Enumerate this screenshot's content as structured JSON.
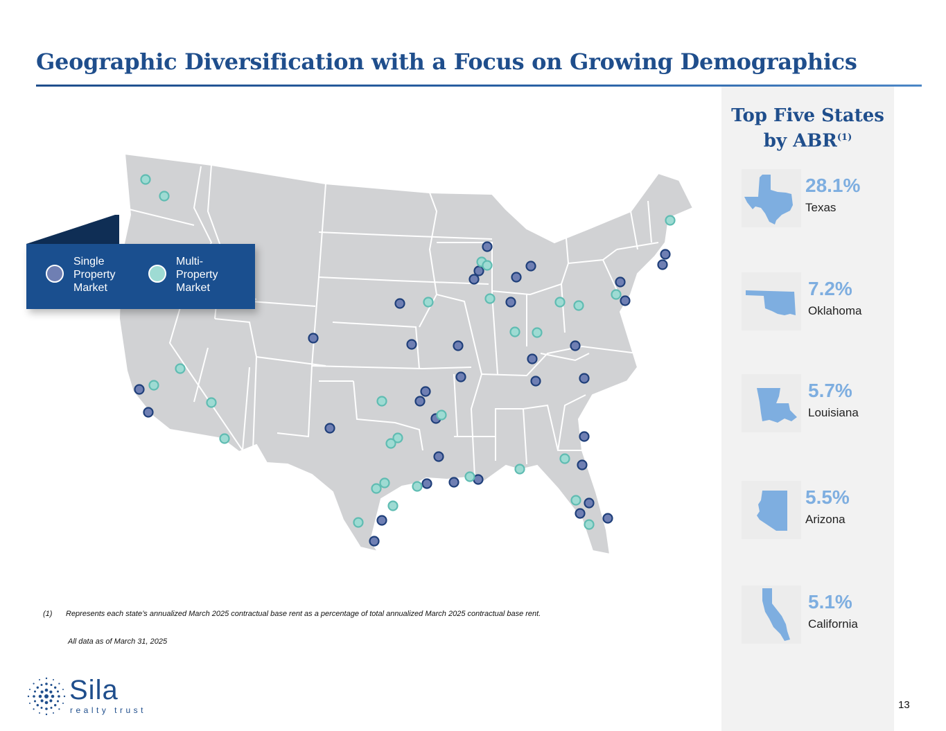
{
  "title": "Geographic Diversification with a Focus on Growing Demographics",
  "colors": {
    "brand_blue": "#1f4e8c",
    "single_marker": "#6f7fb3",
    "multi_marker": "#9edbd3",
    "map_fill": "#d1d2d4",
    "state_accent": "#7eaee0"
  },
  "legend": {
    "single": "Single Property Market",
    "multi": "Multi-Property Market"
  },
  "top_states": {
    "title": "Top Five States by ABR",
    "title_line1": "Top Five States",
    "title_line2": "by ABR",
    "note_ref": "(1)",
    "items": [
      {
        "percent": "28.1%",
        "state": "Texas",
        "icon": "texas-shape"
      },
      {
        "percent": "7.2%",
        "state": "Oklahoma",
        "icon": "oklahoma-shape"
      },
      {
        "percent": "5.7%",
        "state": "Louisiana",
        "icon": "louisiana-shape"
      },
      {
        "percent": "5.5%",
        "state": "Arizona",
        "icon": "arizona-shape"
      },
      {
        "percent": "5.1%",
        "state": "California",
        "icon": "california-shape"
      }
    ]
  },
  "footnote": {
    "number": "(1)",
    "text": "Represents each state’s annualized March 2025 contractual base rent as a percentage of total annualized March 2025 contractual base rent."
  },
  "as_of": "All data as of March 31, 2025",
  "logo": {
    "name": "Sila",
    "tagline": "realty trust"
  },
  "page_number": "13"
}
